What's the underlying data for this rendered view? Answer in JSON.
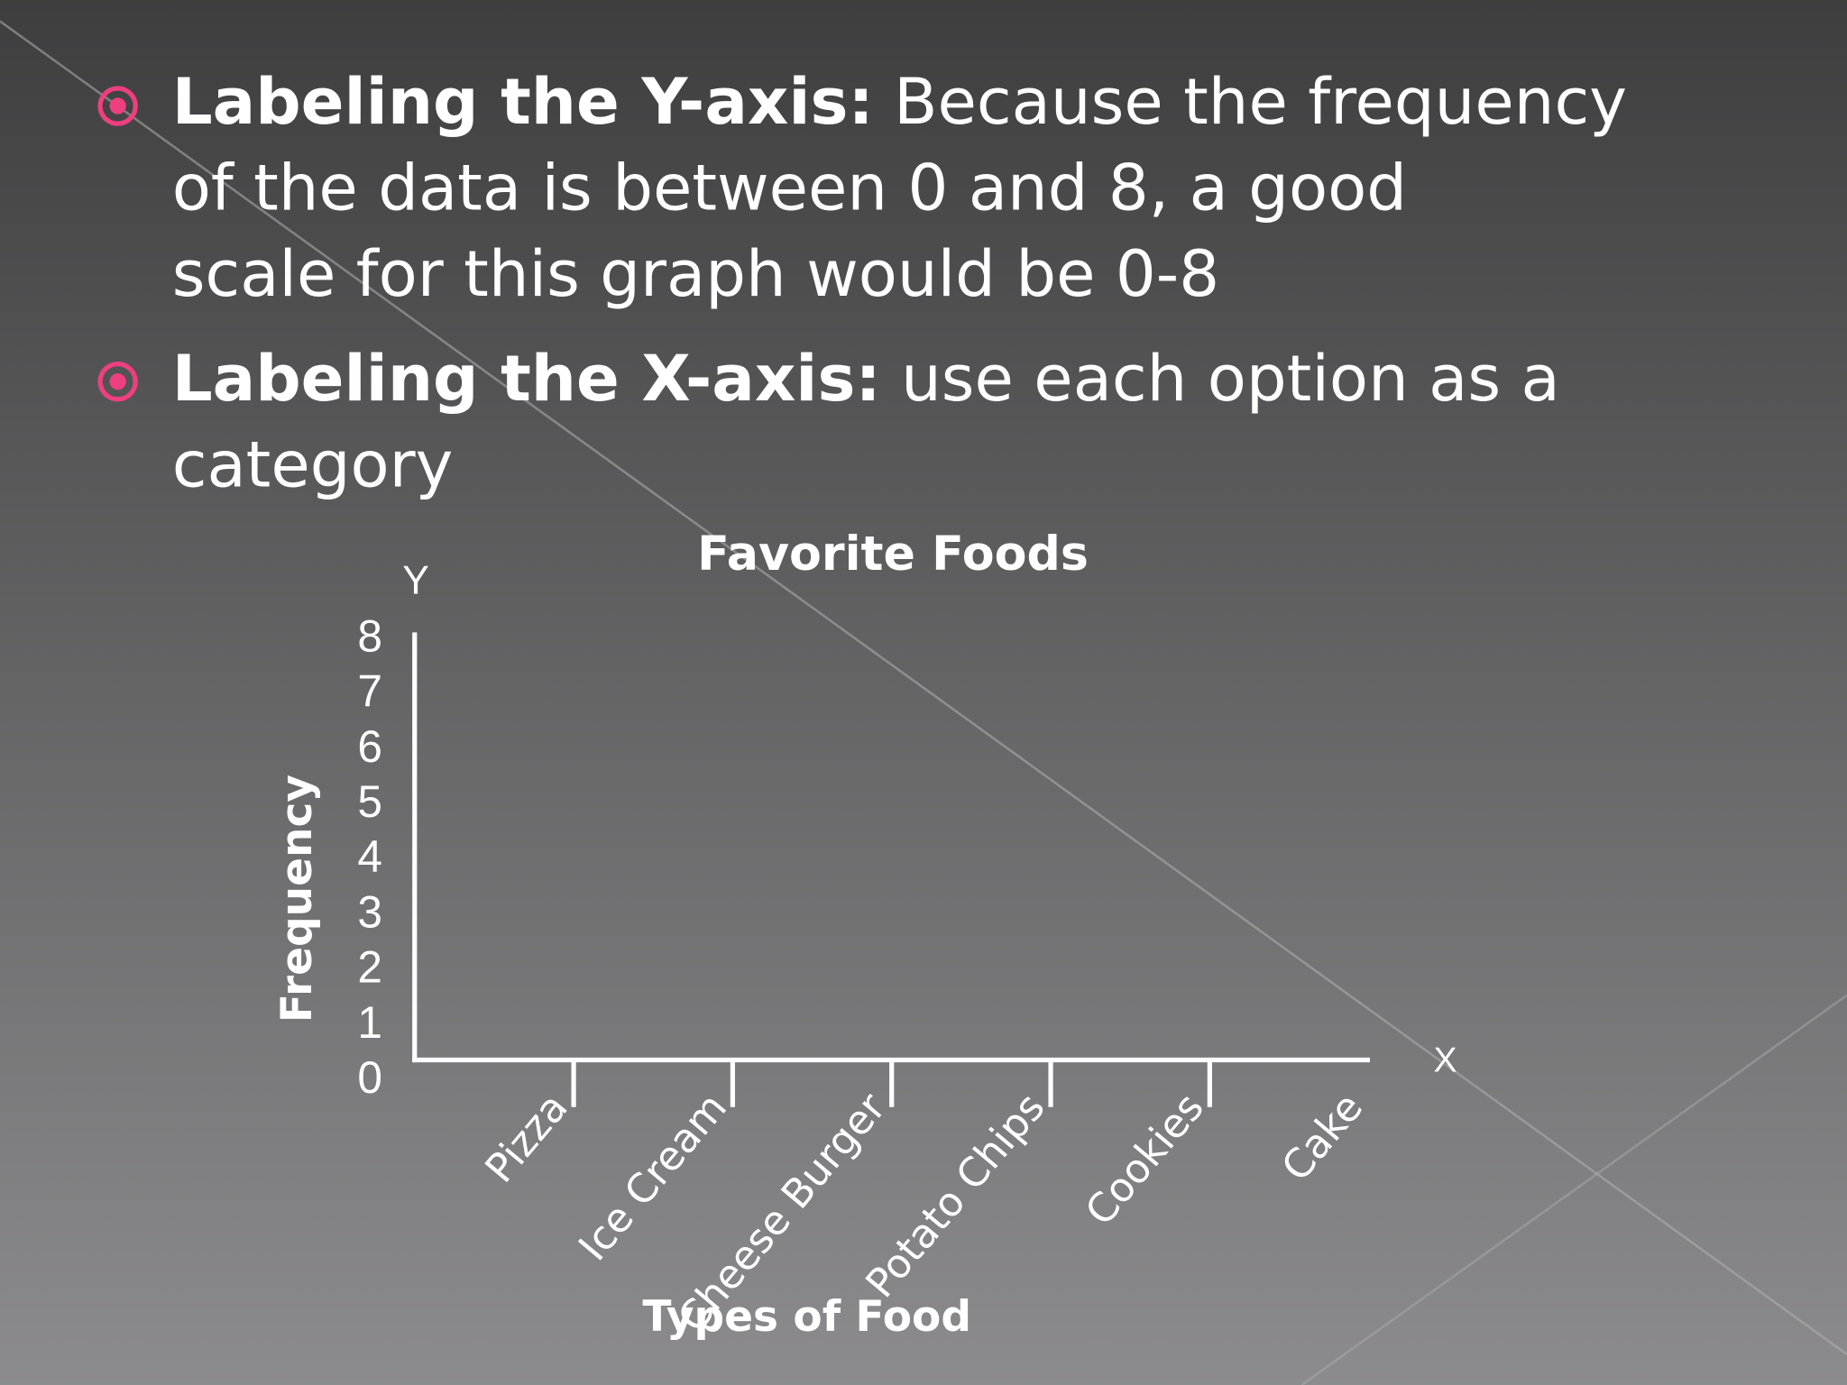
{
  "bullets": [
    {
      "heading": "Labeling the Y-axis:",
      "lines": [
        "Because the frequency",
        "of the data is between 0 and 8, a good",
        "scale for this graph would be 0-8"
      ]
    },
    {
      "heading": "Labeling the X-axis:",
      "lines": [
        "use each option as a",
        "category"
      ]
    }
  ],
  "chart_data": {
    "type": "bar",
    "title": "Favorite Foods",
    "categories": [
      "Pizza",
      "Ice Cream",
      "Cheese Burger",
      "Potato Chips",
      "Cookies",
      "Cake"
    ],
    "ylim": [
      0,
      8
    ],
    "yticks": [
      0,
      1,
      2,
      3,
      4,
      5,
      6,
      7,
      8
    ],
    "y_axis_letter": "Y",
    "x_axis_letter": "X",
    "ylabel": "Frequency",
    "xlabel": "Types of Food"
  }
}
